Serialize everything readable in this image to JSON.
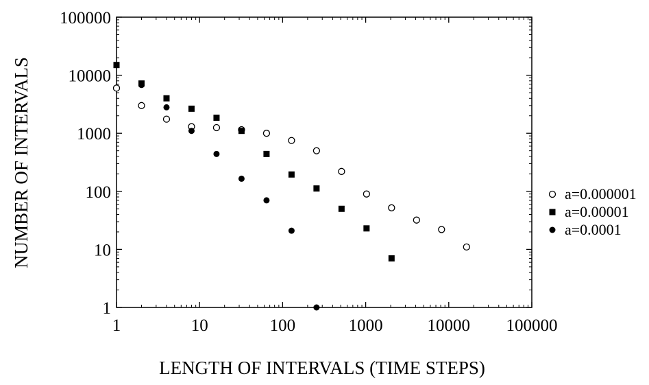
{
  "chart_data": {
    "type": "scatter",
    "title": "",
    "xlabel": "LENGTH OF INTERVALS (TIME STEPS)",
    "ylabel": "NUMBER OF INTERVALS",
    "x_scale": "log",
    "y_scale": "log",
    "xlim": [
      1,
      100000
    ],
    "ylim": [
      1,
      100000
    ],
    "x_ticks": [
      1,
      10,
      100,
      1000,
      10000,
      100000
    ],
    "x_tick_labels": [
      "1",
      "10",
      "100",
      "1000",
      "10000",
      "100000"
    ],
    "y_ticks": [
      1,
      10,
      100,
      1000,
      10000,
      100000
    ],
    "y_tick_labels": [
      "1",
      "10",
      "100",
      "1000",
      "10000",
      "100000"
    ],
    "grid": false,
    "legend_position": "outside-right",
    "series": [
      {
        "name": "a=0.000001",
        "marker": "open-circle",
        "color": "#000000",
        "points": [
          {
            "x": 1,
            "y": 6000
          },
          {
            "x": 2,
            "y": 3000
          },
          {
            "x": 4,
            "y": 1750
          },
          {
            "x": 8,
            "y": 1300
          },
          {
            "x": 16,
            "y": 1250
          },
          {
            "x": 32,
            "y": 1150
          },
          {
            "x": 64,
            "y": 1000
          },
          {
            "x": 128,
            "y": 750
          },
          {
            "x": 256,
            "y": 500
          },
          {
            "x": 512,
            "y": 220
          },
          {
            "x": 1024,
            "y": 90
          },
          {
            "x": 2048,
            "y": 52
          },
          {
            "x": 4096,
            "y": 32
          },
          {
            "x": 8192,
            "y": 22
          },
          {
            "x": 16384,
            "y": 11
          }
        ]
      },
      {
        "name": "a=0.00001",
        "marker": "filled-square",
        "color": "#000000",
        "points": [
          {
            "x": 1,
            "y": 15000
          },
          {
            "x": 2,
            "y": 7200
          },
          {
            "x": 4,
            "y": 4000
          },
          {
            "x": 8,
            "y": 2650
          },
          {
            "x": 16,
            "y": 1850
          },
          {
            "x": 32,
            "y": 1100
          },
          {
            "x": 64,
            "y": 440
          },
          {
            "x": 128,
            "y": 195
          },
          {
            "x": 256,
            "y": 112
          },
          {
            "x": 512,
            "y": 50
          },
          {
            "x": 1024,
            "y": 23
          },
          {
            "x": 2048,
            "y": 7
          }
        ]
      },
      {
        "name": "a=0.0001",
        "marker": "filled-circle",
        "color": "#000000",
        "points": [
          {
            "x": 2,
            "y": 6800
          },
          {
            "x": 4,
            "y": 2800
          },
          {
            "x": 8,
            "y": 1100
          },
          {
            "x": 16,
            "y": 440
          },
          {
            "x": 32,
            "y": 165
          },
          {
            "x": 64,
            "y": 70
          },
          {
            "x": 128,
            "y": 21
          },
          {
            "x": 256,
            "y": 1
          }
        ]
      }
    ]
  }
}
